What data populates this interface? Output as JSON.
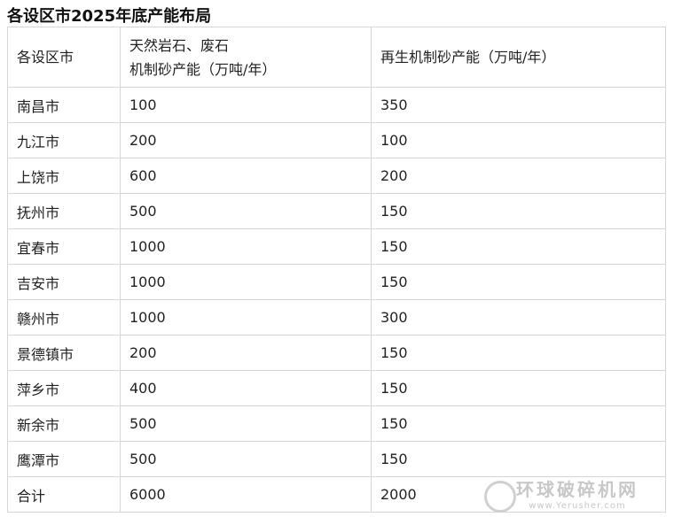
{
  "title": "各设区市2025年底产能布局",
  "table": {
    "headers": [
      "各设区市",
      "天然岩石、废石\n机制砂产能（万吨/年）",
      "再生机制砂产能（万吨/年）"
    ],
    "header_lines": [
      "天然岩石、废石",
      "机制砂产能（万吨/年）"
    ],
    "rows": [
      [
        "南昌市",
        "100",
        "350"
      ],
      [
        "九江市",
        "200",
        "100"
      ],
      [
        "上饶市",
        "600",
        "200"
      ],
      [
        "抚州市",
        "500",
        "150"
      ],
      [
        "宜春市",
        "1000",
        "150"
      ],
      [
        "吉安市",
        "1000",
        "150"
      ],
      [
        "赣州市",
        "1000",
        "300"
      ],
      [
        "景德镇市",
        "200",
        "150"
      ],
      [
        "萍乡市",
        "400",
        "150"
      ],
      [
        "新余市",
        "500",
        "150"
      ],
      [
        "鹰潭市",
        "500",
        "150"
      ],
      [
        "合计",
        "6000",
        "2000"
      ]
    ]
  },
  "watermark": {
    "name": "环球破碎机网",
    "url": "www.Yerusher.com"
  }
}
